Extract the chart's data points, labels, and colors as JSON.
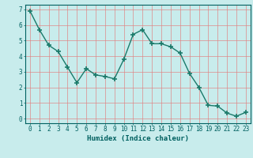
{
  "x": [
    0,
    1,
    2,
    3,
    4,
    5,
    6,
    7,
    8,
    9,
    10,
    11,
    12,
    13,
    14,
    15,
    16,
    17,
    18,
    19,
    20,
    21,
    22,
    23
  ],
  "y": [
    6.9,
    5.7,
    4.7,
    4.3,
    3.3,
    2.3,
    3.2,
    2.8,
    2.7,
    2.55,
    3.8,
    5.4,
    5.7,
    4.8,
    4.8,
    4.6,
    4.2,
    2.9,
    2.0,
    0.85,
    0.8,
    0.35,
    0.15,
    0.4
  ],
  "line_color": "#1a7a6a",
  "marker": "+",
  "marker_size": 4,
  "marker_linewidth": 1.2,
  "xlabel": "Humidex (Indice chaleur)",
  "xlim": [
    -0.5,
    23.5
  ],
  "ylim": [
    -0.3,
    7.3
  ],
  "yticks": [
    0,
    1,
    2,
    3,
    4,
    5,
    6,
    7
  ],
  "xticks": [
    0,
    1,
    2,
    3,
    4,
    5,
    6,
    7,
    8,
    9,
    10,
    11,
    12,
    13,
    14,
    15,
    16,
    17,
    18,
    19,
    20,
    21,
    22,
    23
  ],
  "bg_color": "#c8ecec",
  "grid_color": "#e08080",
  "grid_alpha": 0.9,
  "font_color": "#006060",
  "xlabel_fontsize": 6.5,
  "tick_fontsize": 5.5,
  "linewidth": 1.0
}
